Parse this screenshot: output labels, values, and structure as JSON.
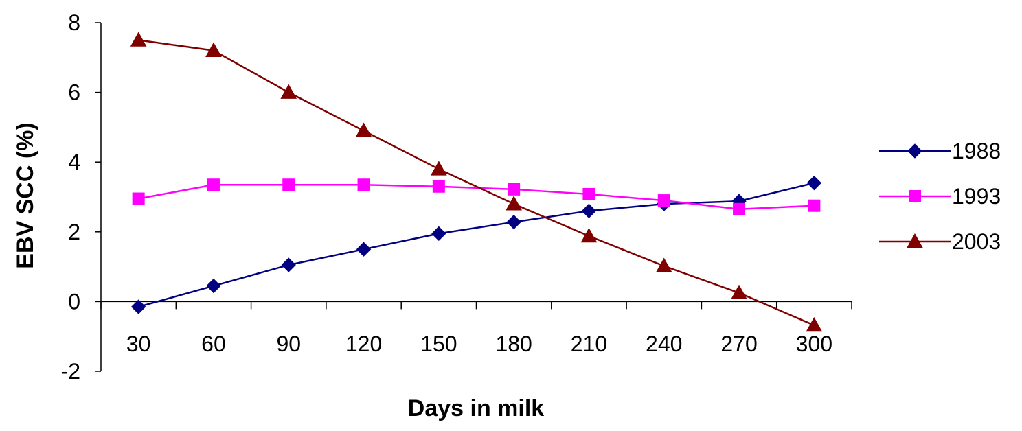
{
  "chart_data": {
    "type": "line",
    "title": "",
    "xlabel": "Days in milk",
    "ylabel": "EBV SCC (%)",
    "categories": [
      "30",
      "60",
      "90",
      "120",
      "150",
      "180",
      "210",
      "240",
      "270",
      "300"
    ],
    "ylim": [
      -2,
      8
    ],
    "yticks": [
      "-2",
      "0",
      "2",
      "4",
      "6",
      "8"
    ],
    "grid": false,
    "legend_position": "right",
    "series": [
      {
        "name": "1988",
        "color": "#000080",
        "marker": "diamond",
        "values": [
          -0.15,
          0.45,
          1.05,
          1.5,
          1.95,
          2.28,
          2.6,
          2.8,
          2.88,
          3.4
        ]
      },
      {
        "name": "1993",
        "color": "#FF00FF",
        "marker": "square",
        "values": [
          2.95,
          3.35,
          3.35,
          3.35,
          3.3,
          3.22,
          3.08,
          2.9,
          2.65,
          2.75
        ]
      },
      {
        "name": "2003",
        "color": "#800000",
        "marker": "triangle",
        "values": [
          7.5,
          7.2,
          6.0,
          4.9,
          3.8,
          2.8,
          1.88,
          1.02,
          0.25,
          -0.68
        ]
      }
    ]
  }
}
